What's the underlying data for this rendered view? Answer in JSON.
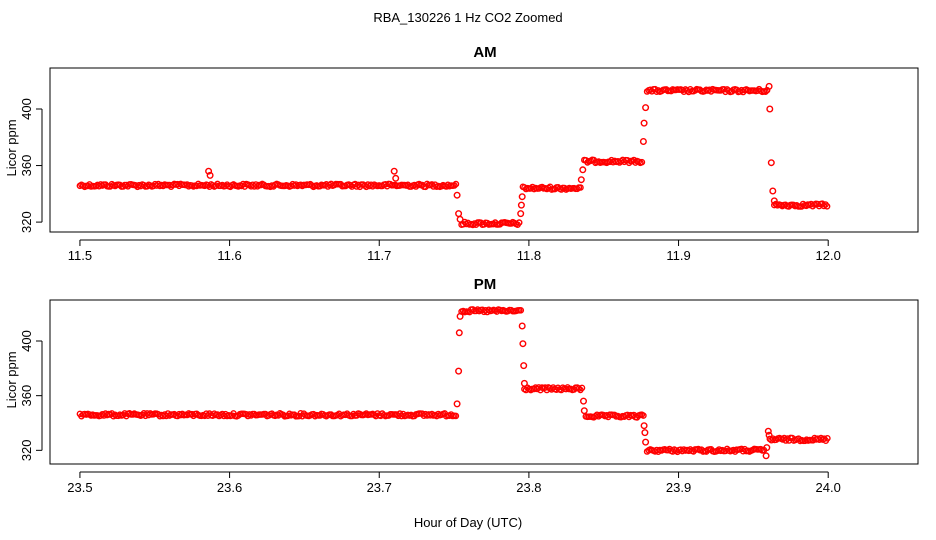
{
  "figure": {
    "title": "RBA_130226  1 Hz CO2 Zoomed",
    "xlabel": "Hour of Day (UTC)",
    "marker_color": "#ff0000"
  },
  "chart_data": [
    {
      "type": "scatter",
      "title": "AM",
      "xlabel": "",
      "ylabel": "Licor ppm",
      "xlim": [
        11.48,
        12.06
      ],
      "ylim": [
        313,
        429
      ],
      "xticks": [
        11.5,
        11.6,
        11.7,
        11.8,
        11.9,
        12.0
      ],
      "xtick_labels": [
        "11.5",
        "11.6",
        "11.7",
        "11.8",
        "11.9",
        "12.0"
      ],
      "yticks": [
        320,
        360,
        400
      ],
      "ytick_labels": [
        "320",
        "360",
        "400"
      ],
      "grid": false,
      "legend": "none",
      "segments": [
        {
          "x": [
            11.5,
            11.752
          ],
          "y": 346
        },
        {
          "x": [
            11.755,
            11.794
          ],
          "y": 319
        },
        {
          "x": [
            11.796,
            11.835
          ],
          "y": 344
        },
        {
          "x": [
            11.837,
            11.876
          ],
          "y": 363
        },
        {
          "x": [
            11.879,
            11.96
          ],
          "y": 413
        },
        {
          "x": [
            11.964,
            12.0
          ],
          "y": 332
        }
      ],
      "points": [
        {
          "x": 11.586,
          "y": 356
        },
        {
          "x": 11.587,
          "y": 353
        },
        {
          "x": 11.71,
          "y": 356
        },
        {
          "x": 11.711,
          "y": 351
        },
        {
          "x": 11.752,
          "y": 339
        },
        {
          "x": 11.753,
          "y": 326
        },
        {
          "x": 11.754,
          "y": 322
        },
        {
          "x": 11.7945,
          "y": 326
        },
        {
          "x": 11.795,
          "y": 332
        },
        {
          "x": 11.7955,
          "y": 338
        },
        {
          "x": 11.835,
          "y": 350
        },
        {
          "x": 11.836,
          "y": 357
        },
        {
          "x": 11.8765,
          "y": 377
        },
        {
          "x": 11.877,
          "y": 390
        },
        {
          "x": 11.878,
          "y": 401
        },
        {
          "x": 11.9605,
          "y": 416
        },
        {
          "x": 11.961,
          "y": 400
        },
        {
          "x": 11.962,
          "y": 362
        },
        {
          "x": 11.963,
          "y": 342
        },
        {
          "x": 11.964,
          "y": 335
        }
      ]
    },
    {
      "type": "scatter",
      "title": "PM",
      "xlabel": "",
      "ylabel": "Licor ppm",
      "xlim": [
        23.48,
        24.06
      ],
      "ylim": [
        310,
        430
      ],
      "xticks": [
        23.5,
        23.6,
        23.7,
        23.8,
        23.9,
        24.0
      ],
      "xtick_labels": [
        "23.5",
        "23.6",
        "23.7",
        "23.8",
        "23.9",
        "24.0"
      ],
      "yticks": [
        320,
        360,
        400
      ],
      "ytick_labels": [
        "320",
        "360",
        "400"
      ],
      "grid": false,
      "legend": "none",
      "segments": [
        {
          "x": [
            23.5,
            23.752
          ],
          "y": 346
        },
        {
          "x": [
            23.755,
            23.795
          ],
          "y": 422
        },
        {
          "x": [
            23.797,
            23.836
          ],
          "y": 365
        },
        {
          "x": [
            23.838,
            23.877
          ],
          "y": 345
        },
        {
          "x": [
            23.879,
            23.958
          ],
          "y": 320
        },
        {
          "x": [
            23.961,
            24.0
          ],
          "y": 328
        }
      ],
      "points": [
        {
          "x": 23.752,
          "y": 354
        },
        {
          "x": 23.753,
          "y": 378
        },
        {
          "x": 23.7535,
          "y": 406
        },
        {
          "x": 23.754,
          "y": 418
        },
        {
          "x": 23.7955,
          "y": 411
        },
        {
          "x": 23.796,
          "y": 398
        },
        {
          "x": 23.7965,
          "y": 382
        },
        {
          "x": 23.797,
          "y": 369
        },
        {
          "x": 23.8365,
          "y": 356
        },
        {
          "x": 23.837,
          "y": 349
        },
        {
          "x": 23.877,
          "y": 338
        },
        {
          "x": 23.8775,
          "y": 333
        },
        {
          "x": 23.878,
          "y": 326
        },
        {
          "x": 23.9585,
          "y": 316
        },
        {
          "x": 23.959,
          "y": 322
        },
        {
          "x": 23.96,
          "y": 334
        },
        {
          "x": 23.9605,
          "y": 331
        }
      ]
    }
  ]
}
